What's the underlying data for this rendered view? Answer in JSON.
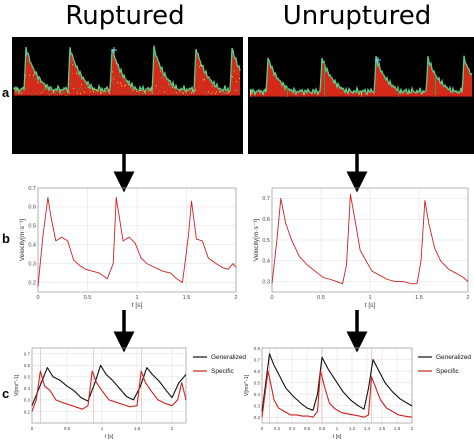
{
  "headers": {
    "left": "Ruptured",
    "right": "Unruptured"
  },
  "row_labels": {
    "a": "a",
    "b": "b",
    "c": "c"
  },
  "colors": {
    "specific": "#cc2222",
    "generalized": "#111111",
    "doppler_bg": "#000000",
    "doppler_fill": "#d42a1a",
    "doppler_edge": "#5bd08c",
    "baseline": "#cc2020"
  },
  "chart_data": [
    {
      "panel": "b-left",
      "type": "line",
      "xlabel": "t [s]",
      "ylabel": "Velocity[m·s⁻¹]",
      "xlim": [
        0,
        2
      ],
      "ylim": [
        0.15,
        0.7
      ],
      "xticks": [
        "0",
        "0.5",
        "1",
        "1.5",
        "2"
      ],
      "yticks": [
        "0.2",
        "0.3",
        "0.4",
        "0.5",
        "0.6",
        "0.7"
      ],
      "grid": true,
      "series": [
        {
          "color": "#cc2222",
          "x": [
            0.0,
            0.05,
            0.1,
            0.13,
            0.18,
            0.24,
            0.3,
            0.36,
            0.42,
            0.48,
            0.55,
            0.62,
            0.7,
            0.76,
            0.79,
            0.82,
            0.86,
            0.92,
            0.98,
            1.04,
            1.1,
            1.18,
            1.26,
            1.34,
            1.4,
            1.46,
            1.52,
            1.55,
            1.6,
            1.66,
            1.72,
            1.8,
            1.86,
            1.92,
            1.97,
            2.0
          ],
          "y": [
            0.18,
            0.45,
            0.65,
            0.55,
            0.42,
            0.44,
            0.42,
            0.32,
            0.29,
            0.27,
            0.26,
            0.25,
            0.22,
            0.3,
            0.65,
            0.55,
            0.42,
            0.44,
            0.41,
            0.33,
            0.3,
            0.28,
            0.26,
            0.25,
            0.22,
            0.2,
            0.45,
            0.63,
            0.43,
            0.42,
            0.33,
            0.3,
            0.28,
            0.27,
            0.3,
            0.28
          ]
        }
      ]
    },
    {
      "panel": "b-right",
      "type": "line",
      "xlabel": "t [s]",
      "ylabel": "Velocity[m·s⁻¹]",
      "xlim": [
        0,
        2
      ],
      "ylim": [
        0.25,
        0.75
      ],
      "xticks": [
        "0",
        "0.5",
        "1",
        "1.5",
        "2"
      ],
      "yticks": [
        "0.3",
        "0.4",
        "0.5",
        "0.6",
        "0.7"
      ],
      "grid": true,
      "series": [
        {
          "color": "#cc2222",
          "x": [
            0.0,
            0.05,
            0.09,
            0.14,
            0.2,
            0.28,
            0.36,
            0.44,
            0.52,
            0.6,
            0.66,
            0.72,
            0.76,
            0.8,
            0.86,
            0.9,
            0.96,
            1.02,
            1.1,
            1.18,
            1.26,
            1.34,
            1.42,
            1.48,
            1.52,
            1.56,
            1.6,
            1.66,
            1.72,
            1.8,
            1.88,
            1.95,
            2.0
          ],
          "y": [
            0.29,
            0.5,
            0.7,
            0.58,
            0.5,
            0.42,
            0.38,
            0.35,
            0.32,
            0.31,
            0.3,
            0.29,
            0.38,
            0.72,
            0.56,
            0.45,
            0.4,
            0.35,
            0.33,
            0.31,
            0.3,
            0.3,
            0.29,
            0.29,
            0.4,
            0.69,
            0.58,
            0.46,
            0.4,
            0.36,
            0.34,
            0.32,
            0.3
          ]
        }
      ]
    },
    {
      "panel": "c-left",
      "type": "line",
      "xlabel": "t [s]",
      "ylabel": "V[ms^-1]",
      "xlim": [
        0,
        2.2
      ],
      "ylim": [
        0.1,
        0.75
      ],
      "xticks": [
        "0",
        "0.5",
        "1",
        "1.5",
        "2"
      ],
      "yticks": [
        "0.2",
        "0.3",
        "0.4",
        "0.5",
        "0.6",
        "0.7"
      ],
      "grid": true,
      "series": [
        {
          "name": "Generalized",
          "color": "#111111",
          "x": [
            0.0,
            0.1,
            0.22,
            0.3,
            0.4,
            0.5,
            0.6,
            0.7,
            0.8,
            0.9,
            0.98,
            1.06,
            1.15,
            1.25,
            1.35,
            1.45,
            1.55,
            1.64,
            1.72,
            1.82,
            1.92,
            2.0,
            2.1,
            2.2
          ],
          "y": [
            0.25,
            0.4,
            0.58,
            0.5,
            0.47,
            0.42,
            0.38,
            0.32,
            0.29,
            0.45,
            0.6,
            0.52,
            0.47,
            0.4,
            0.33,
            0.3,
            0.42,
            0.58,
            0.52,
            0.46,
            0.38,
            0.32,
            0.45,
            0.52
          ]
        },
        {
          "name": "Specific",
          "color": "#cc2222",
          "x": [
            0.0,
            0.06,
            0.12,
            0.18,
            0.26,
            0.34,
            0.42,
            0.52,
            0.62,
            0.72,
            0.8,
            0.86,
            0.92,
            1.0,
            1.1,
            1.2,
            1.3,
            1.4,
            1.5,
            1.56,
            1.62,
            1.7,
            1.8,
            1.9,
            2.0,
            2.08,
            2.14,
            2.2
          ],
          "y": [
            0.2,
            0.3,
            0.55,
            0.42,
            0.38,
            0.3,
            0.28,
            0.26,
            0.24,
            0.22,
            0.25,
            0.55,
            0.45,
            0.38,
            0.3,
            0.28,
            0.26,
            0.24,
            0.25,
            0.55,
            0.45,
            0.38,
            0.3,
            0.27,
            0.25,
            0.3,
            0.45,
            0.3
          ]
        }
      ]
    },
    {
      "panel": "c-right",
      "type": "line",
      "xlabel": "t [s]",
      "ylabel": "V[ms^-1]",
      "xlim": [
        0,
        2
      ],
      "ylim": [
        0.15,
        0.8
      ],
      "xticks": [
        "0",
        "0.2",
        "0.4",
        "0.6",
        "0.8",
        "1",
        "1.2",
        "1.4",
        "1.6",
        "1.8",
        "2"
      ],
      "yticks": [
        "0.2",
        "0.3",
        "0.4",
        "0.5",
        "0.6",
        "0.7",
        "0.8"
      ],
      "grid": true,
      "series": [
        {
          "name": "Generalized",
          "color": "#111111",
          "x": [
            0.0,
            0.05,
            0.1,
            0.16,
            0.24,
            0.32,
            0.42,
            0.52,
            0.6,
            0.68,
            0.74,
            0.8,
            0.88,
            0.98,
            1.08,
            1.18,
            1.28,
            1.36,
            1.42,
            1.48,
            1.56,
            1.64,
            1.74,
            1.84,
            1.94,
            2.0
          ],
          "y": [
            0.25,
            0.5,
            0.75,
            0.65,
            0.55,
            0.45,
            0.38,
            0.32,
            0.28,
            0.26,
            0.4,
            0.72,
            0.62,
            0.52,
            0.42,
            0.35,
            0.3,
            0.27,
            0.45,
            0.7,
            0.6,
            0.5,
            0.42,
            0.36,
            0.32,
            0.3
          ]
        },
        {
          "name": "Specific",
          "color": "#cc2222",
          "x": [
            0.0,
            0.04,
            0.08,
            0.12,
            0.16,
            0.22,
            0.3,
            0.38,
            0.46,
            0.54,
            0.62,
            0.68,
            0.74,
            0.78,
            0.84,
            0.9,
            0.98,
            1.06,
            1.14,
            1.22,
            1.3,
            1.36,
            1.42,
            1.46,
            1.52,
            1.58,
            1.66,
            1.74,
            1.82,
            1.9,
            2.0
          ],
          "y": [
            0.2,
            0.4,
            0.6,
            0.48,
            0.35,
            0.28,
            0.25,
            0.22,
            0.22,
            0.21,
            0.21,
            0.2,
            0.25,
            0.6,
            0.45,
            0.32,
            0.27,
            0.24,
            0.23,
            0.22,
            0.21,
            0.2,
            0.22,
            0.55,
            0.45,
            0.35,
            0.28,
            0.25,
            0.22,
            0.21,
            0.2
          ]
        }
      ]
    }
  ]
}
